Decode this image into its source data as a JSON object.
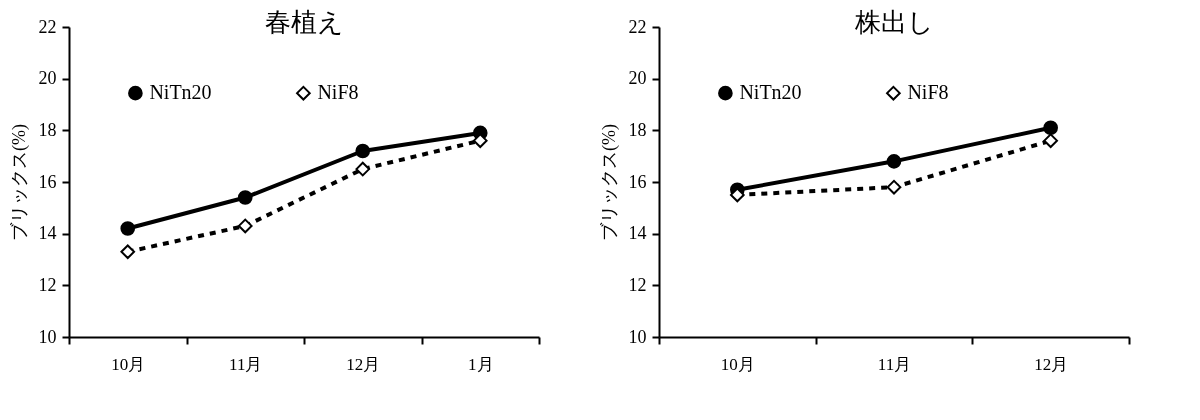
{
  "chart_data": [
    {
      "type": "line",
      "title": "春植え",
      "ylabel": "ブリックス(%)",
      "categories": [
        "10月",
        "11月",
        "12月",
        "1月"
      ],
      "ylim": [
        10,
        22
      ],
      "yticks": [
        10,
        12,
        14,
        16,
        18,
        20,
        22
      ],
      "grid": false,
      "legend": "top",
      "series": [
        {
          "name": "NiTn20",
          "color": "#000000",
          "marker": "circle",
          "line_style": "solid",
          "values": [
            14.2,
            15.4,
            17.2,
            17.9
          ]
        },
        {
          "name": "NiF8",
          "color": "#000000",
          "marker": "diamond",
          "line_style": "dashed",
          "values": [
            13.3,
            14.3,
            16.5,
            17.6
          ]
        }
      ]
    },
    {
      "type": "line",
      "title": "株出し",
      "ylabel": "ブリックス(%)",
      "categories": [
        "10月",
        "11月",
        "12月"
      ],
      "ylim": [
        10,
        22
      ],
      "yticks": [
        10,
        12,
        14,
        16,
        18,
        20,
        22
      ],
      "grid": false,
      "legend": "top",
      "series": [
        {
          "name": "NiTn20",
          "color": "#000000",
          "marker": "circle",
          "line_style": "solid",
          "values": [
            15.7,
            16.8,
            18.1
          ]
        },
        {
          "name": "NiF8",
          "color": "#000000",
          "marker": "diamond",
          "line_style": "dashed",
          "values": [
            15.5,
            15.8,
            17.6
          ]
        }
      ]
    }
  ]
}
